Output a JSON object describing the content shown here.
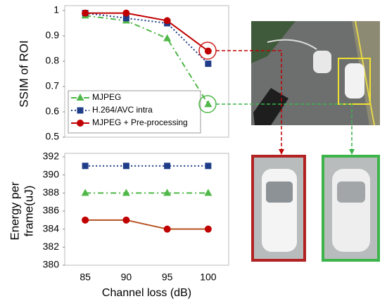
{
  "chart_data": [
    {
      "type": "line",
      "ylabel": "SSIM of ROI",
      "categories": [
        null,
        null,
        null,
        null
      ],
      "ylim": [
        0.5,
        1
      ],
      "yticks": [
        0.5,
        0.6,
        0.7,
        0.8,
        0.9,
        1
      ],
      "legend": "lower left",
      "series": [
        {
          "name": "MJPEG",
          "color": "#4fb848",
          "marker": "triangle",
          "linestyle": "dashdot",
          "values": [
            0.98,
            0.96,
            0.89,
            0.63
          ]
        },
        {
          "name": "H.264/AVC intra",
          "color": "#1f3c88",
          "marker": "square",
          "linestyle": "dotted",
          "values": [
            0.99,
            0.97,
            0.95,
            0.79
          ]
        },
        {
          "name": "MJPEG + Pre-processing",
          "color": "#c00000",
          "marker": "circle",
          "linestyle": "solid",
          "values": [
            0.99,
            0.99,
            0.96,
            0.84
          ]
        }
      ]
    },
    {
      "type": "line",
      "ylabel": [
        "Energy per",
        "frame(uJ)"
      ],
      "xlabel": "Channel loss (dB)",
      "categories": [
        "85",
        "90",
        "95",
        "100"
      ],
      "ylim": [
        380,
        392
      ],
      "yticks": [
        380,
        382,
        384,
        386,
        388,
        390,
        392
      ],
      "series": [
        {
          "color": "#1f3c88",
          "marker": "square",
          "linestyle": "dotted",
          "values": [
            391,
            391,
            391,
            391
          ]
        },
        {
          "color": "#4fb848",
          "marker": "triangle",
          "linestyle": "dashdot",
          "values": [
            388,
            388,
            388,
            388
          ]
        },
        {
          "color": "#b5501f",
          "markercolor": "#c00000",
          "marker": "circle",
          "linestyle": "solid",
          "values": [
            385,
            385,
            384,
            384
          ]
        }
      ]
    }
  ]
}
